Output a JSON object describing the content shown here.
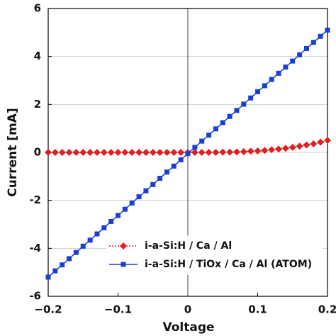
{
  "chart_data": {
    "type": "line",
    "x_label": "Voltage",
    "y_label": "Current [mA]",
    "x": [
      -0.2,
      -0.19,
      -0.18,
      -0.17,
      -0.16,
      -0.15,
      -0.14,
      -0.13,
      -0.12,
      -0.11,
      -0.1,
      -0.09,
      -0.08,
      -0.07,
      -0.06,
      -0.05,
      -0.04,
      -0.03,
      -0.02,
      -0.01,
      0,
      0.01,
      0.02,
      0.03,
      0.04,
      0.05,
      0.06,
      0.07,
      0.08,
      0.09,
      0.1,
      0.11,
      0.12,
      0.13,
      0.14,
      0.15,
      0.16,
      0.17,
      0.18,
      0.19,
      0.2
    ],
    "series": [
      {
        "name": "i-a-Si:H / Ca / Al",
        "color": "#e02020",
        "marker": "diamond",
        "line_style": "dotted",
        "values": [
          0,
          0,
          0,
          0,
          0,
          0,
          0,
          0,
          0,
          0,
          0,
          0,
          0,
          0,
          0,
          0,
          0,
          0,
          0,
          0,
          0,
          0,
          0,
          0,
          0,
          0.01,
          0.01,
          0.02,
          0.03,
          0.05,
          0.06,
          0.08,
          0.11,
          0.14,
          0.17,
          0.21,
          0.26,
          0.31,
          0.36,
          0.43,
          0.5
        ]
      },
      {
        "name": "i-a-Si:H / TiOx / Ca / Al (ATOM)",
        "color": "#1a3fd0",
        "marker": "square",
        "line_style": "solid",
        "values": [
          -5.2,
          -4.94,
          -4.69,
          -4.43,
          -4.17,
          -3.91,
          -3.66,
          -3.4,
          -3.14,
          -2.88,
          -2.63,
          -2.37,
          -2.11,
          -1.85,
          -1.6,
          -1.34,
          -1.08,
          -0.82,
          -0.57,
          -0.31,
          -0.05,
          0.21,
          0.47,
          0.72,
          0.98,
          1.24,
          1.5,
          1.75,
          2.01,
          2.27,
          2.53,
          2.78,
          3.04,
          3.3,
          3.56,
          3.81,
          4.07,
          4.33,
          4.59,
          4.84,
          5.1
        ]
      }
    ],
    "xlim": [
      -0.2,
      0.2
    ],
    "xticks": [
      {
        "value": -0.2,
        "label": "−0.2"
      },
      {
        "value": -0.1,
        "label": "−0.1"
      },
      0,
      0.1,
      0.2
    ],
    "ylim": [
      -6,
      6
    ],
    "yticks": [
      -6,
      -4,
      -2,
      0,
      2,
      4,
      6
    ],
    "grid": true,
    "legend": "lower right"
  }
}
